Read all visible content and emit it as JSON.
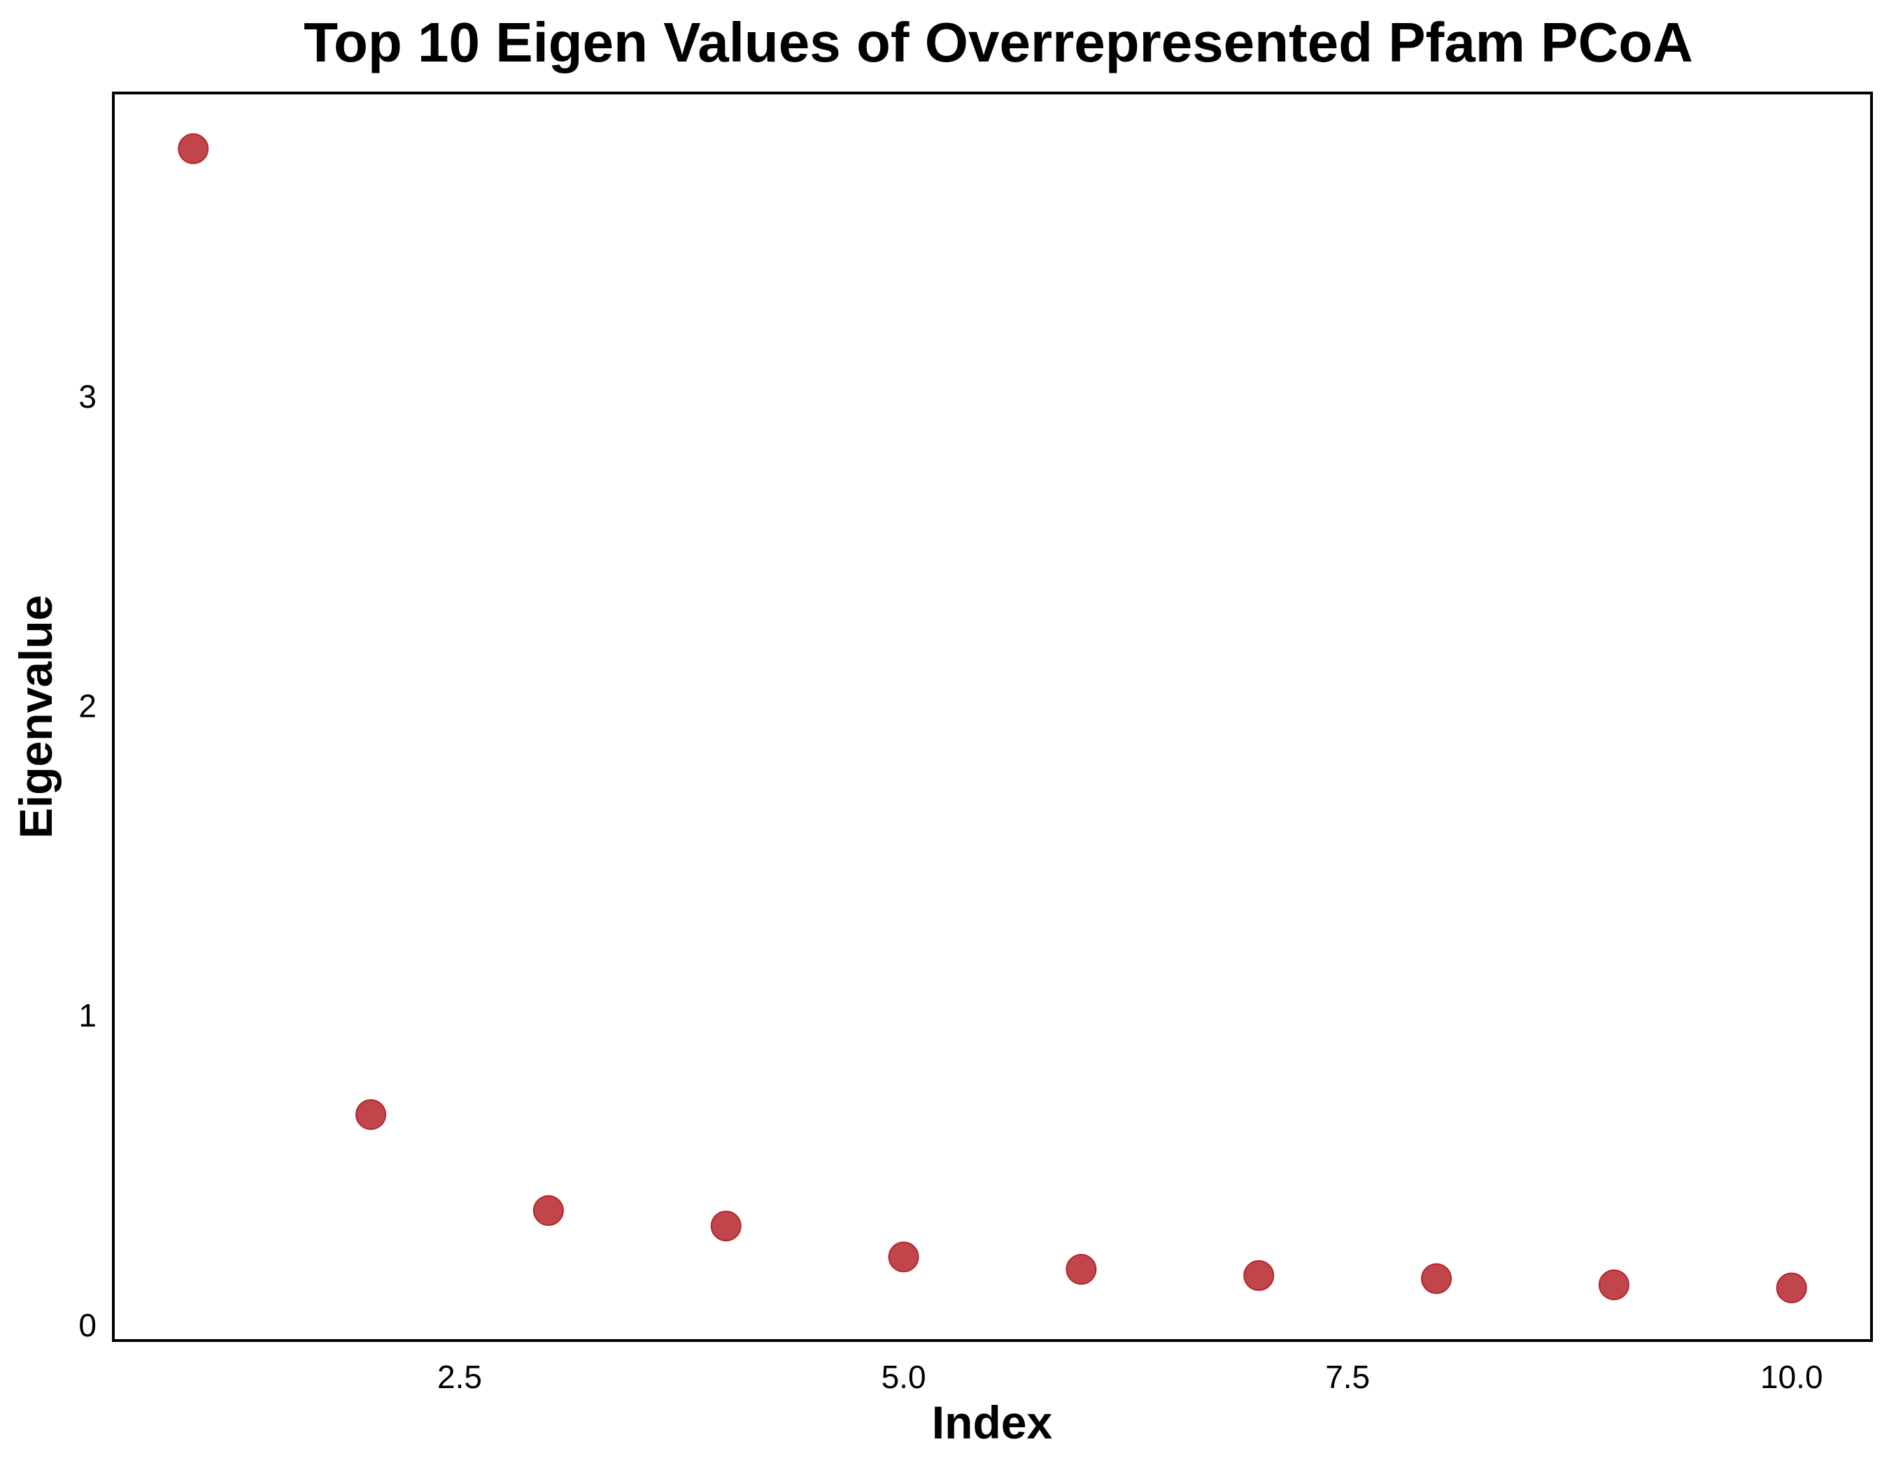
{
  "chart_data": {
    "type": "scatter",
    "title": "Top 10 Eigen Values of Overrepresented Pfam PCoA",
    "xlabel": "Index",
    "ylabel": "Eigenvalue",
    "x": [
      1,
      2,
      3,
      4,
      5,
      6,
      7,
      8,
      9,
      10
    ],
    "y": [
      3.8,
      0.68,
      0.37,
      0.32,
      0.22,
      0.18,
      0.16,
      0.15,
      0.13,
      0.12
    ],
    "xlim": [
      0.55,
      10.45
    ],
    "ylim": [
      -0.05,
      3.98
    ],
    "xticks": [
      2.5,
      5.0,
      7.5,
      10.0
    ],
    "xtick_labels": [
      "2.5",
      "5.0",
      "7.5",
      "10.0"
    ],
    "yticks": [
      0,
      1,
      2,
      3
    ],
    "ytick_labels": [
      "0",
      "1",
      "2",
      "3"
    ],
    "grid": false,
    "legend": false,
    "point_color": "#B5262B"
  }
}
